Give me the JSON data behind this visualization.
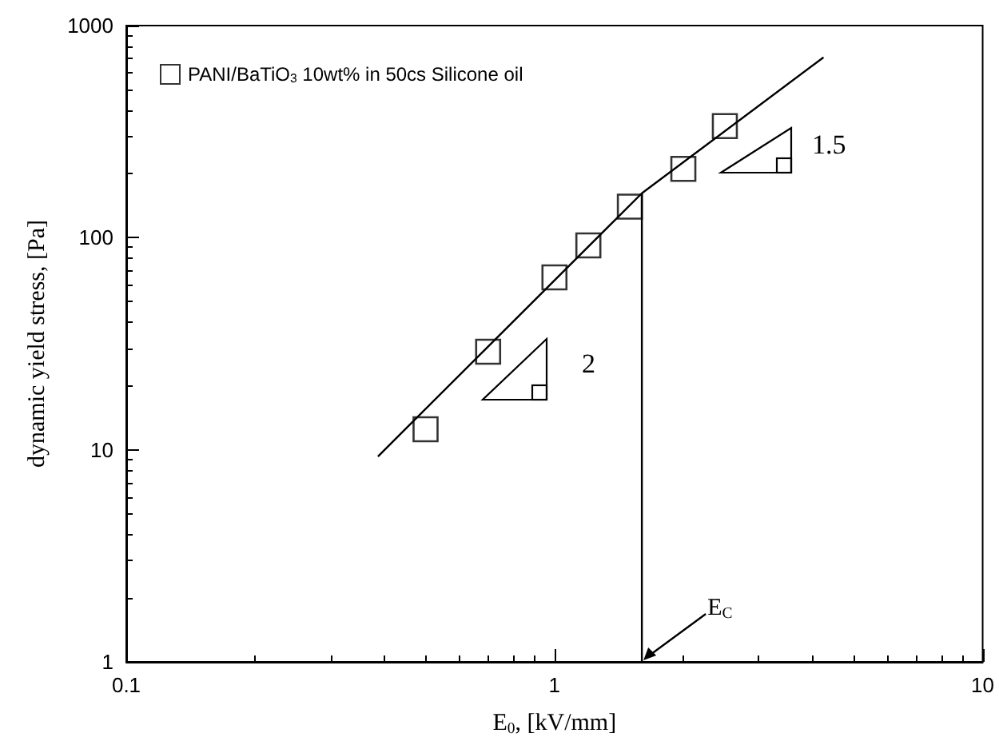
{
  "chart_data": {
    "type": "scatter",
    "xlabel": "E$_{0}$, [kV/mm]",
    "ylabel": "dynamic yield stress, [Pa]",
    "log": "xy",
    "xlim": [
      0.1,
      10
    ],
    "ylim": [
      1,
      1000
    ],
    "xticks": [
      0.1,
      1,
      10
    ],
    "yticks": [
      1,
      10,
      100,
      1000
    ],
    "grid": false,
    "legend": "top left",
    "marker": "square",
    "series": [
      {
        "name": "PANI/BaTiO$_{3}$ 10wt% in 50cs Silicone oil",
        "color": "#000000",
        "x": [
          0.5,
          0.7,
          1.0,
          1.2,
          1.5,
          2.0,
          2.5
        ],
        "values": [
          12.5,
          29,
          65,
          92,
          140,
          211,
          336
        ]
      },
      {
        "type": "line",
        "color": "#000000",
        "marker": "none",
        "x": [
          0.387,
          1.6,
          4.25
        ],
        "values": [
          9.3,
          162,
          708
        ]
      },
      {
        "type": "line",
        "color": "#000000",
        "marker": "none",
        "x": [
          1.6,
          1.6
        ],
        "values": [
          1,
          162
        ]
      }
    ],
    "annotations": [
      "2",
      "1.5",
      {
        "text": "E$_{C}$",
        "x": 1.6,
        "y": 1
      }
    ]
  }
}
